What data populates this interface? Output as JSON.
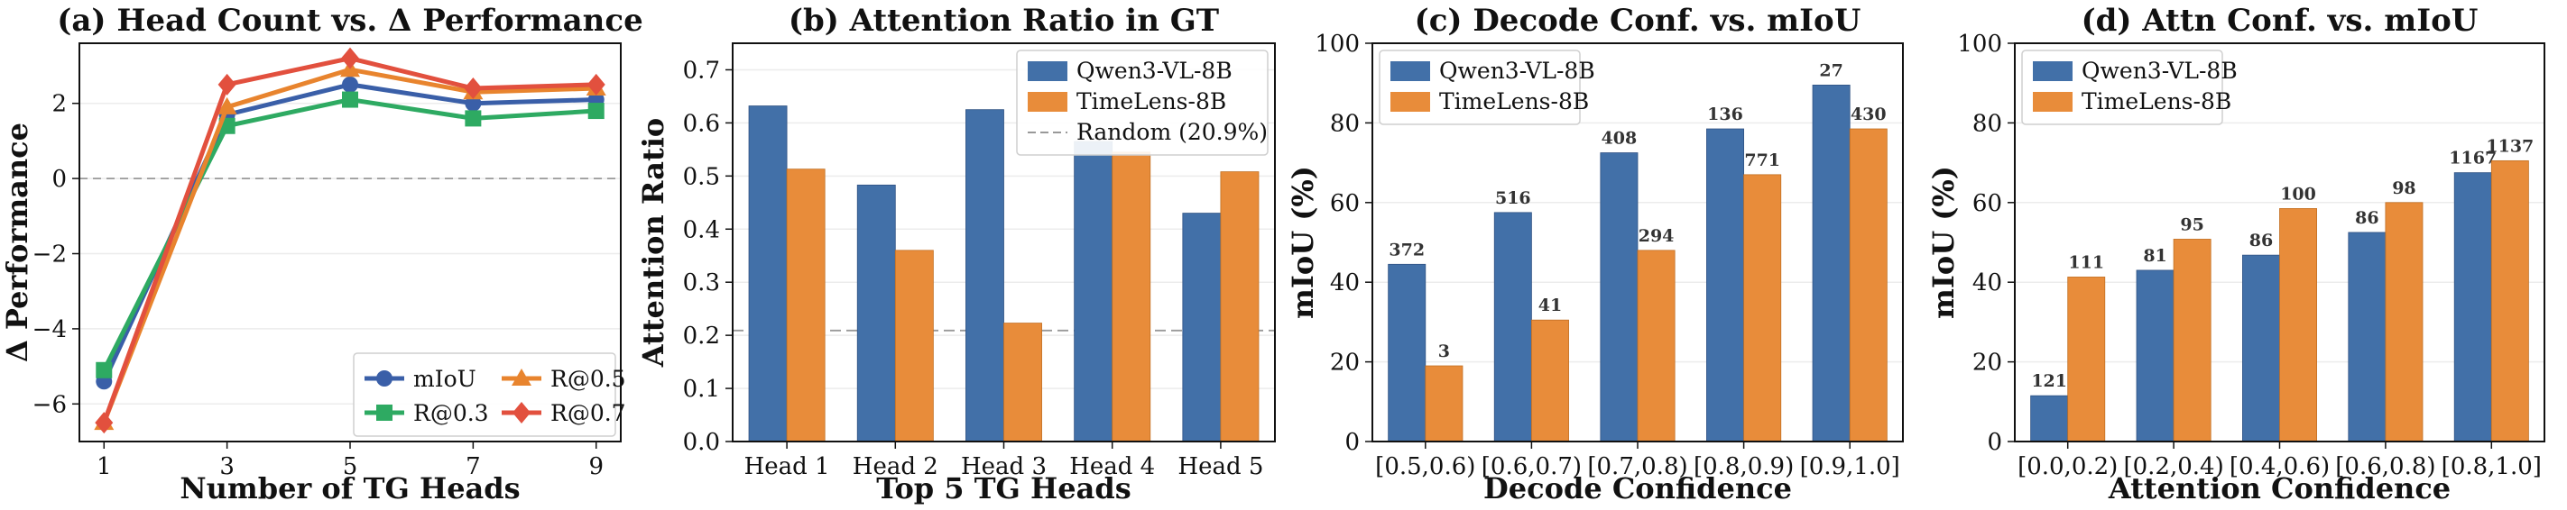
{
  "colors": {
    "qwen": "#4270a8",
    "timelens": "#e88c3a",
    "miou": "#3a5fa8",
    "r03": "#2eaa62",
    "r05": "#e8842e",
    "r07": "#e2503e",
    "random": "#999999"
  },
  "chart_data": [
    {
      "type": "line",
      "title": "(a) Head Count vs. Δ Performance",
      "xlabel": "Number of TG Heads",
      "ylabel": "Δ Performance",
      "x": [
        1,
        3,
        5,
        7,
        9
      ],
      "xlim": [
        0.6,
        9.4
      ],
      "ylim": [
        -7,
        3.6
      ],
      "yticks": [
        -6,
        -4,
        -2,
        0,
        2
      ],
      "ytick_labels": [
        "−6",
        "−4",
        "−2",
        "0",
        "2"
      ],
      "reference_line_y": 0,
      "legend_position": "lower-right",
      "series": [
        {
          "name": "mIoU",
          "marker": "circle",
          "values": [
            -5.4,
            1.7,
            2.5,
            2.0,
            2.1
          ]
        },
        {
          "name": "R@0.3",
          "marker": "square",
          "values": [
            -5.1,
            1.4,
            2.1,
            1.6,
            1.8
          ]
        },
        {
          "name": "R@0.5",
          "marker": "triangle",
          "values": [
            -6.5,
            1.9,
            2.9,
            2.3,
            2.4
          ]
        },
        {
          "name": "R@0.7",
          "marker": "diamond",
          "values": [
            -6.5,
            2.5,
            3.2,
            2.4,
            2.5
          ]
        }
      ]
    },
    {
      "type": "bar",
      "title": "(b) Attention Ratio in GT",
      "xlabel": "Top 5 TG Heads",
      "ylabel": "Attention Ratio",
      "categories": [
        "Head 1",
        "Head 2",
        "Head 3",
        "Head 4",
        "Head 5"
      ],
      "ylim": [
        0,
        0.75
      ],
      "yticks": [
        0.0,
        0.1,
        0.2,
        0.3,
        0.4,
        0.5,
        0.6,
        0.7
      ],
      "ytick_labels": [
        "0.0",
        "0.1",
        "0.2",
        "0.3",
        "0.4",
        "0.5",
        "0.6",
        "0.7"
      ],
      "reference_line": {
        "label": "Random (20.9%)",
        "y": 0.209
      },
      "legend_position": "top-right",
      "series": [
        {
          "name": "Qwen3-VL-8B",
          "values": [
            0.632,
            0.483,
            0.625,
            0.565,
            0.43
          ]
        },
        {
          "name": "TimeLens-8B",
          "values": [
            0.513,
            0.36,
            0.223,
            0.545,
            0.508
          ]
        }
      ]
    },
    {
      "type": "bar",
      "title": "(c) Decode Conf. vs. mIoU",
      "xlabel": "Decode Confidence",
      "ylabel": "mIoU (%)",
      "categories": [
        "[0.5,0.6)",
        "[0.6,0.7)",
        "[0.7,0.8)",
        "[0.8,0.9)",
        "[0.9,1.0]"
      ],
      "ylim": [
        0,
        100
      ],
      "yticks": [
        0,
        20,
        40,
        60,
        80,
        100
      ],
      "ytick_labels": [
        "0",
        "20",
        "40",
        "60",
        "80",
        "100"
      ],
      "legend_position": "top-left",
      "series": [
        {
          "name": "Qwen3-VL-8B",
          "values": [
            44.5,
            57.5,
            72.5,
            78.5,
            89.5
          ],
          "labels": [
            "372",
            "516",
            "408",
            "136",
            "27"
          ]
        },
        {
          "name": "TimeLens-8B",
          "values": [
            19.0,
            30.5,
            48.0,
            67.0,
            78.5
          ],
          "labels": [
            "3",
            "41",
            "294",
            "771",
            "430"
          ]
        }
      ]
    },
    {
      "type": "bar",
      "title": "(d) Attn Conf. vs. mIoU",
      "xlabel": "Attention Confidence",
      "ylabel": "mIoU (%)",
      "categories": [
        "[0.0,0.2)",
        "[0.2,0.4)",
        "[0.4,0.6)",
        "[0.6,0.8)",
        "[0.8,1.0]"
      ],
      "ylim": [
        0,
        100
      ],
      "yticks": [
        0,
        20,
        40,
        60,
        80,
        100
      ],
      "ytick_labels": [
        "0",
        "20",
        "40",
        "60",
        "80",
        "100"
      ],
      "legend_position": "top-left",
      "series": [
        {
          "name": "Qwen3-VL-8B",
          "values": [
            11.5,
            43.0,
            46.8,
            52.5,
            67.5
          ],
          "labels": [
            "121",
            "81",
            "86",
            "86",
            "1167"
          ]
        },
        {
          "name": "TimeLens-8B",
          "values": [
            41.3,
            50.8,
            58.5,
            60.0,
            70.5
          ],
          "labels": [
            "111",
            "95",
            "100",
            "98",
            "1137"
          ]
        }
      ]
    }
  ]
}
